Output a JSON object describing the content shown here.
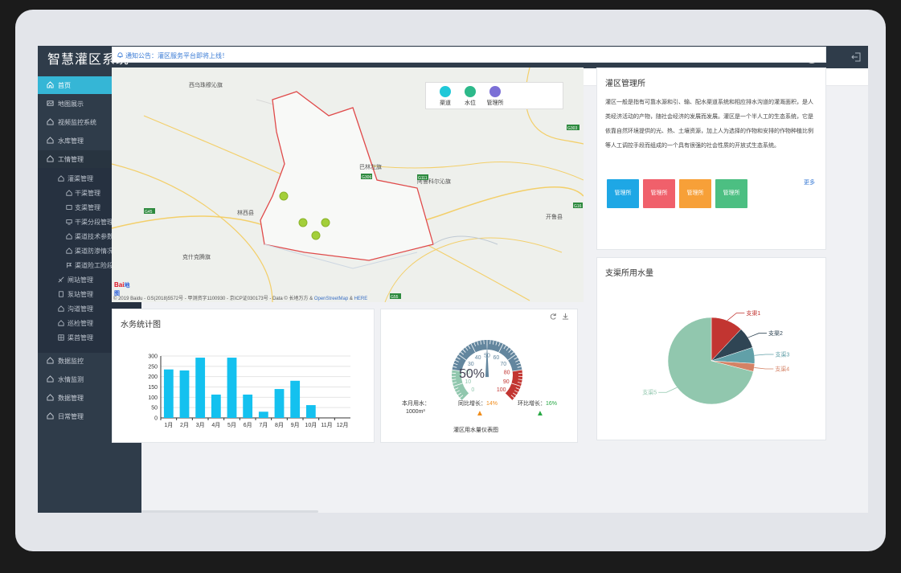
{
  "app": {
    "title": "智慧灌区系统"
  },
  "sidebar": {
    "items": [
      {
        "label": "首页",
        "icon": "home-icon"
      },
      {
        "label": "地图展示",
        "icon": "map-icon"
      },
      {
        "label": "视频监控系统",
        "icon": "video-icon"
      },
      {
        "label": "水库管理",
        "icon": "home-icon"
      },
      {
        "label": "工情管理",
        "icon": "home-icon"
      },
      {
        "label": "数据监控",
        "icon": "home-icon"
      },
      {
        "label": "水情监测",
        "icon": "home-icon"
      },
      {
        "label": "数据管理",
        "icon": "home-icon"
      },
      {
        "label": "日常管理",
        "icon": "home-icon"
      }
    ],
    "group": {
      "label": "灌渠管理"
    },
    "sub_items": [
      "干渠管理",
      "支渠管理",
      "干渠分段管理",
      "渠道技术参数",
      "渠道防渗情况",
      "渠道险工险段"
    ],
    "other_items": [
      "闸站管理",
      "泵站管理",
      "沟道管理",
      "巡检管理",
      "渠首管理"
    ]
  },
  "breadcrumb": {
    "home": "首页"
  },
  "notice": {
    "text": "通知公告：灌区服务平台即将上线！"
  },
  "map": {
    "legend": [
      {
        "label": "渠道",
        "color": "#1fc8d8"
      },
      {
        "label": "水位",
        "color": "#2db98a"
      },
      {
        "label": "管理所",
        "color": "#7b6fd6"
      }
    ],
    "places": [
      "西乌珠穆沁旗",
      "巴林左旗",
      "阿鲁科尔沁旗",
      "林西县",
      "克什克腾旗",
      "开鲁县"
    ],
    "roads": [
      "G303",
      "G306",
      "G111",
      "G45",
      "G16",
      "G55"
    ],
    "logo": "Bai",
    "logo_sub": "地图",
    "copyright": "© 2019 Baidu - GS(2018)5572号 - 甲测资字1100930 - 京ICP证030173号 - Data © 长地万方 &",
    "osm": "OpenStreetMap",
    "amp": "&",
    "here": "HERE"
  },
  "mgmt": {
    "title": "灌区管理所",
    "description": "灌区一般是指有可靠水源和引、输、配水渠道系统和相应排水沟道的灌溉面积，是人类经济活动的产物，随社会经济的发展而发展。灌区是一个半人工的生态系统，它是依靠自然环境提供的光、热、土壤资源，加上人为选择的作物和安排的作物种植比例等人工调控手段而组成的一个具有很强的社会性质的开放式生态系统。",
    "more": "更多",
    "tiles": [
      {
        "label": "管理所",
        "color": "#1ea7e5"
      },
      {
        "label": "管理所",
        "color": "#f0606b"
      },
      {
        "label": "管理所",
        "color": "#f7a038"
      },
      {
        "label": "管理所",
        "color": "#4cbf82"
      }
    ]
  },
  "water_stats": {
    "title": "水务统计图"
  },
  "gauge": {
    "value": 50,
    "value_label": "50%",
    "ticks": [
      "0",
      "10",
      "20",
      "30",
      "40",
      "50",
      "60",
      "70",
      "80",
      "90",
      "100"
    ],
    "monthly_label": "本月用水：",
    "monthly_value": "1000m³",
    "yoy_label": "同比增长：",
    "yoy_value": "14%",
    "mom_label": "环比增长：",
    "mom_value": "16%",
    "caption": "灌区用水量仪表图",
    "colors": {
      "low": "#91c7ae",
      "mid": "#63869e",
      "high": "#c23531"
    }
  },
  "pie_panel": {
    "title": "支渠所用水量"
  },
  "chart_data": [
    {
      "type": "bar",
      "title": "水务统计图",
      "categories": [
        "1月",
        "2月",
        "3月",
        "4月",
        "5月",
        "6月",
        "7月",
        "8月",
        "9月",
        "10月",
        "11月",
        "12月"
      ],
      "values": [
        235,
        230,
        292,
        113,
        292,
        113,
        30,
        140,
        180,
        62,
        0,
        0
      ],
      "ylim": [
        0,
        300
      ],
      "yticks": [
        "0",
        "50",
        "100",
        "150",
        "200",
        "250",
        "300"
      ],
      "color": "#14c1ef",
      "grid": true
    },
    {
      "type": "pie",
      "title": "支渠所用水量",
      "labels": [
        "支渠1",
        "支渠2",
        "支渠3",
        "支渠4",
        "支渠5"
      ],
      "values": [
        12,
        8,
        6,
        3,
        71
      ],
      "colors": [
        "#c23531",
        "#2f4554",
        "#61a0a8",
        "#d48265",
        "#91c7ae"
      ]
    }
  ]
}
